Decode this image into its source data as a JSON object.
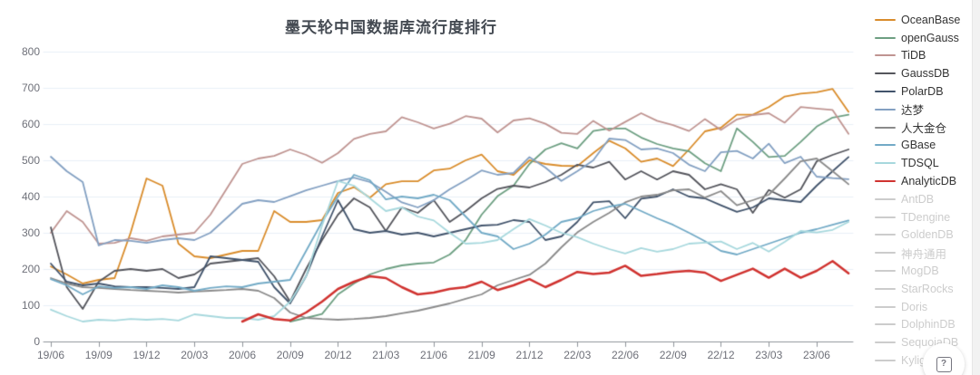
{
  "title": "墨天轮中国数据库流行度排行",
  "help_button": {
    "glyph": "?"
  },
  "colors": {
    "axis_text": "#6e7079",
    "axis_line": "#8f949b",
    "grid_line": "#e9eff7",
    "title_text": "#444a52",
    "legend_active_text": "#333333",
    "legend_disabled": "#cccccc",
    "background": "#ffffff"
  },
  "legend": {
    "items": [
      {
        "label": "OceanBase",
        "color": "#d98c2b",
        "active": true
      },
      {
        "label": "openGauss",
        "color": "#6d9f82",
        "active": true
      },
      {
        "label": "TiDB",
        "color": "#bf9491",
        "active": true
      },
      {
        "label": "GaussDB",
        "color": "#54555c",
        "active": true
      },
      {
        "label": "PolarDB",
        "color": "#41536b",
        "active": true
      },
      {
        "label": "达梦",
        "color": "#83a0c2",
        "active": true
      },
      {
        "label": "人大金仓",
        "color": "#8a8a8a",
        "active": true
      },
      {
        "label": "GBase",
        "color": "#72aac6",
        "active": true
      },
      {
        "label": "TDSQL",
        "color": "#a7d8dd",
        "active": true
      },
      {
        "label": "AnalyticDB",
        "color": "#d03330",
        "active": true
      },
      {
        "label": "AntDB",
        "color": "#cccccc",
        "active": false
      },
      {
        "label": "TDengine",
        "color": "#cccccc",
        "active": false
      },
      {
        "label": "GoldenDB",
        "color": "#cccccc",
        "active": false
      },
      {
        "label": "神舟通用",
        "color": "#cccccc",
        "active": false
      },
      {
        "label": "MogDB",
        "color": "#cccccc",
        "active": false
      },
      {
        "label": "StarRocks",
        "color": "#cccccc",
        "active": false
      },
      {
        "label": "Doris",
        "color": "#cccccc",
        "active": false
      },
      {
        "label": "DolphinDB",
        "color": "#cccccc",
        "active": false
      },
      {
        "label": "SequoiaDB",
        "color": "#cccccc",
        "active": false
      },
      {
        "label": "Kyligence",
        "color": "#cccccc",
        "active": false
      }
    ]
  },
  "chart_data": {
    "type": "line",
    "title": "墨天轮中国数据库流行度排行",
    "xlabel": "",
    "ylabel": "",
    "ylim": [
      0,
      800
    ],
    "y_ticks": [
      800,
      700,
      600,
      500,
      400,
      300,
      200,
      100,
      0
    ],
    "x_tick_labels": [
      "19/06",
      "19/09",
      "19/12",
      "20/03",
      "20/06",
      "20/09",
      "20/12",
      "21/03",
      "21/06",
      "21/09",
      "21/12",
      "22/03",
      "22/06",
      "22/09",
      "22/12",
      "23/03",
      "23/06"
    ],
    "grid": "horizontal",
    "legend_position": "right",
    "months": [
      "19/06",
      "19/07",
      "19/08",
      "19/09",
      "19/10",
      "19/11",
      "19/12",
      "20/01",
      "20/02",
      "20/03",
      "20/04",
      "20/05",
      "20/06",
      "20/07",
      "20/08",
      "20/09",
      "20/10",
      "20/11",
      "20/12",
      "21/01",
      "21/02",
      "21/03",
      "21/04",
      "21/05",
      "21/06",
      "21/07",
      "21/08",
      "21/09",
      "21/10",
      "21/11",
      "21/12",
      "22/01",
      "22/02",
      "22/03",
      "22/04",
      "22/05",
      "22/06",
      "22/07",
      "22/08",
      "22/09",
      "22/10",
      "22/11",
      "22/12",
      "23/01",
      "23/02",
      "23/03",
      "23/04",
      "23/05",
      "23/06",
      "23/07",
      "23/08"
    ],
    "series": [
      {
        "name": "OceanBase",
        "color": "#d98c2b",
        "width": 1.8,
        "values": [
          207,
          185,
          160,
          170,
          175,
          300,
          450,
          430,
          270,
          235,
          230,
          240,
          250,
          250,
          360,
          330,
          330,
          335,
          410,
          426,
          397,
          434,
          442,
          442,
          472,
          477,
          500,
          516,
          470,
          460,
          500,
          490,
          485,
          484,
          520,
          554,
          533,
          496,
          505,
          484,
          530,
          580,
          590,
          626,
          626,
          647,
          676,
          684,
          688,
          697,
          634
        ]
      },
      {
        "name": "openGauss",
        "color": "#6d9f82",
        "width": 1.8,
        "values": [
          null,
          null,
          null,
          null,
          null,
          null,
          null,
          null,
          null,
          null,
          null,
          null,
          null,
          null,
          null,
          55,
          65,
          76,
          130,
          160,
          185,
          200,
          210,
          215,
          218,
          240,
          280,
          350,
          401,
          430,
          490,
          530,
          547,
          533,
          581,
          588,
          588,
          563,
          545,
          533,
          525,
          492,
          470,
          588,
          551,
          509,
          512,
          551,
          593,
          618,
          626
        ]
      },
      {
        "name": "TiDB",
        "color": "#bf9491",
        "width": 1.8,
        "values": [
          300,
          360,
          330,
          270,
          272,
          285,
          278,
          290,
          295,
          300,
          350,
          420,
          490,
          505,
          512,
          530,
          515,
          493,
          520,
          559,
          573,
          580,
          619,
          605,
          588,
          601,
          622,
          615,
          577,
          610,
          616,
          601,
          576,
          573,
          609,
          582,
          606,
          630,
          609,
          597,
          581,
          614,
          584,
          613,
          625,
          630,
          604,
          647,
          643,
          639,
          573
        ]
      },
      {
        "name": "GaussDB",
        "color": "#54555c",
        "width": 1.8,
        "values": [
          315,
          150,
          90,
          165,
          195,
          200,
          195,
          200,
          175,
          185,
          215,
          220,
          225,
          230,
          180,
          110,
          200,
          280,
          350,
          395,
          370,
          305,
          370,
          355,
          390,
          330,
          360,
          395,
          421,
          430,
          425,
          440,
          460,
          488,
          480,
          496,
          447,
          470,
          447,
          470,
          460,
          420,
          434,
          420,
          355,
          418,
          397,
          420,
          497,
          515,
          530
        ]
      },
      {
        "name": "PolarDB",
        "color": "#41536b",
        "width": 1.8,
        "values": [
          215,
          165,
          155,
          160,
          152,
          150,
          150,
          148,
          145,
          150,
          235,
          230,
          225,
          220,
          150,
          105,
          180,
          290,
          390,
          310,
          300,
          305,
          295,
          300,
          290,
          300,
          310,
          320,
          322,
          335,
          330,
          280,
          290,
          330,
          384,
          387,
          340,
          394,
          400,
          420,
          400,
          395,
          376,
          358,
          370,
          395,
          390,
          385,
          430,
          470,
          509
        ]
      },
      {
        "name": "达梦",
        "color": "#83a0c2",
        "width": 1.8,
        "values": [
          510,
          470,
          440,
          265,
          280,
          278,
          272,
          280,
          285,
          280,
          300,
          340,
          380,
          390,
          385,
          401,
          417,
          430,
          443,
          452,
          440,
          413,
          384,
          370,
          390,
          420,
          445,
          472,
          460,
          465,
          509,
          480,
          443,
          470,
          500,
          560,
          556,
          530,
          533,
          520,
          488,
          470,
          522,
          526,
          505,
          546,
          492,
          510,
          455,
          451,
          448
        ]
      },
      {
        "name": "人大金仓",
        "color": "#8a8a8a",
        "width": 1.8,
        "values": [
          175,
          160,
          150,
          148,
          145,
          142,
          140,
          138,
          135,
          138,
          140,
          142,
          145,
          140,
          120,
          80,
          65,
          62,
          60,
          62,
          65,
          70,
          78,
          85,
          95,
          105,
          118,
          130,
          155,
          170,
          184,
          215,
          260,
          301,
          330,
          355,
          384,
          400,
          405,
          417,
          420,
          397,
          415,
          376,
          390,
          405,
          450,
          497,
          505,
          470,
          434
        ]
      },
      {
        "name": "GBase",
        "color": "#72aac6",
        "width": 1.8,
        "values": [
          172,
          155,
          130,
          152,
          148,
          150,
          145,
          155,
          150,
          140,
          148,
          152,
          150,
          160,
          165,
          170,
          250,
          330,
          400,
          460,
          445,
          392,
          400,
          395,
          405,
          390,
          345,
          300,
          290,
          255,
          270,
          295,
          330,
          340,
          360,
          372,
          380,
          360,
          340,
          322,
          300,
          277,
          250,
          240,
          255,
          270,
          285,
          300,
          310,
          322,
          334
        ]
      },
      {
        "name": "TDSQL",
        "color": "#a7d8dd",
        "width": 1.8,
        "values": [
          88,
          70,
          55,
          60,
          58,
          62,
          60,
          62,
          58,
          75,
          70,
          65,
          65,
          60,
          70,
          110,
          180,
          320,
          443,
          430,
          395,
          360,
          370,
          345,
          334,
          300,
          270,
          272,
          280,
          310,
          338,
          320,
          300,
          288,
          270,
          255,
          243,
          258,
          248,
          255,
          270,
          273,
          276,
          255,
          272,
          248,
          275,
          305,
          301,
          308,
          330
        ]
      },
      {
        "name": "AnalyticDB",
        "color": "#d03330",
        "width": 2.5,
        "values": [
          null,
          null,
          null,
          null,
          null,
          null,
          null,
          null,
          null,
          null,
          null,
          null,
          55,
          75,
          62,
          58,
          80,
          110,
          145,
          165,
          180,
          175,
          150,
          130,
          135,
          145,
          150,
          165,
          142,
          155,
          172,
          150,
          170,
          192,
          186,
          190,
          209,
          181,
          186,
          192,
          195,
          190,
          167,
          184,
          201,
          176,
          201,
          176,
          195,
          222,
          188
        ]
      }
    ]
  }
}
